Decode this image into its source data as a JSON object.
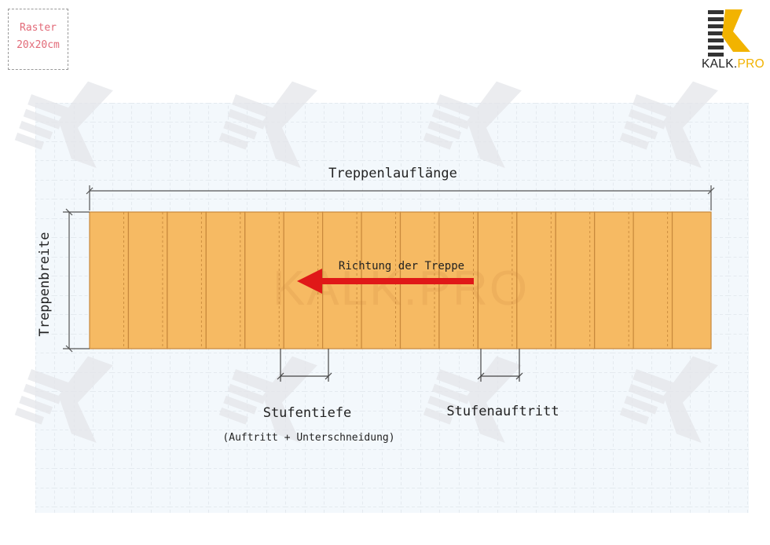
{
  "raster": {
    "line1": "Raster",
    "line2": "20x20cm"
  },
  "logo": {
    "brand_main": "KALK",
    "brand_dot": ".",
    "brand_suffix": "PRO"
  },
  "watermark": {
    "text": "KALK.PRO"
  },
  "labels": {
    "run_length": "Treppenlauflänge",
    "width": "Treppenbreite",
    "direction": "Richtung der Treppe",
    "tread_depth": "Stufentiefe",
    "tread_depth_note": "(Auftritt + Unterschneidung)",
    "going": "Stufenauftritt"
  },
  "stairs": {
    "tread_count": 16
  },
  "colors": {
    "tread_fill": "#f6ba63",
    "tread_edge": "#c8893c",
    "arrow": "#e01818",
    "grid": "#d6dbe2",
    "dimension": "#555555",
    "raster_text": "#e26a78",
    "logo_accent": "#f2b300"
  }
}
